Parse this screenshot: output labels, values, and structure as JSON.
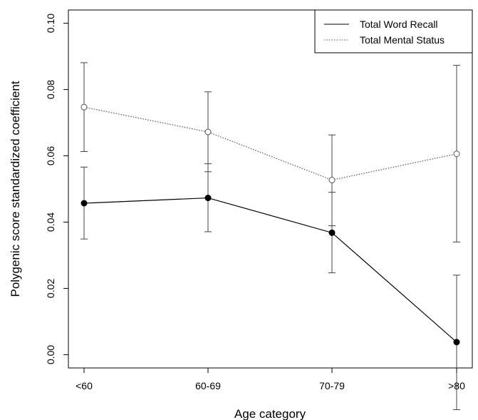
{
  "chart_data": {
    "type": "line",
    "title": "",
    "xlabel": "Age category",
    "ylabel": "Polygenic score standardized coefficient",
    "categories": [
      "<60",
      "60-69",
      "70-79",
      ">80"
    ],
    "ylim": [
      -0.004,
      0.104
    ],
    "yticks": [
      0.0,
      0.02,
      0.04,
      0.06,
      0.08,
      0.1
    ],
    "ytick_labels": [
      "0.00",
      "0.02",
      "0.04",
      "0.06",
      "0.08",
      "0.10"
    ],
    "legend_position": "top-right",
    "grid": false,
    "series": [
      {
        "name": "Total Word Recall",
        "line_style": "solid",
        "marker": "filled-circle",
        "color": "#000000",
        "values": [
          0.0457,
          0.0473,
          0.0368,
          0.0038
        ],
        "ci_lower": [
          0.0349,
          0.0371,
          0.0247,
          -0.0166
        ],
        "ci_upper": [
          0.0566,
          0.0576,
          0.049,
          0.024
        ]
      },
      {
        "name": "Total Mental Status",
        "line_style": "dotted",
        "marker": "open-circle",
        "color": "#555555",
        "values": [
          0.0747,
          0.0672,
          0.0527,
          0.0606
        ],
        "ci_lower": [
          0.0613,
          0.0552,
          0.0389,
          0.034
        ],
        "ci_upper": [
          0.0881,
          0.0793,
          0.0663,
          0.0873
        ]
      }
    ]
  }
}
